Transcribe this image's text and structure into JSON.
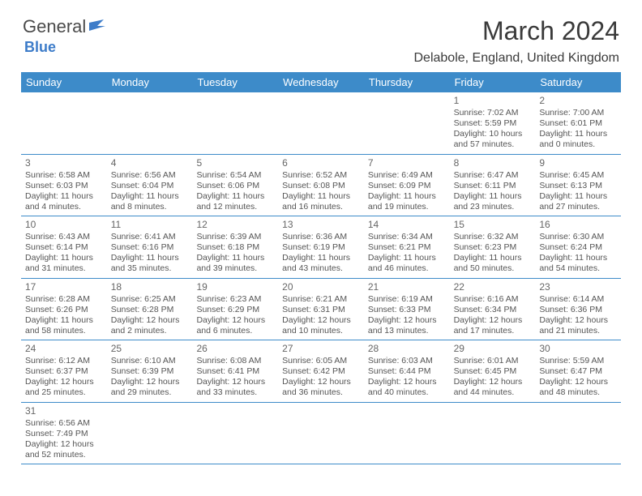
{
  "logo": {
    "part1": "General",
    "part2": "Blue"
  },
  "title": "March 2024",
  "location": "Delabole, England, United Kingdom",
  "header_bg": "#3d8bc9",
  "day_names": [
    "Sunday",
    "Monday",
    "Tuesday",
    "Wednesday",
    "Thursday",
    "Friday",
    "Saturday"
  ],
  "weeks": [
    [
      null,
      null,
      null,
      null,
      null,
      {
        "n": "1",
        "sr": "Sunrise: 7:02 AM",
        "ss": "Sunset: 5:59 PM",
        "d1": "Daylight: 10 hours",
        "d2": "and 57 minutes."
      },
      {
        "n": "2",
        "sr": "Sunrise: 7:00 AM",
        "ss": "Sunset: 6:01 PM",
        "d1": "Daylight: 11 hours",
        "d2": "and 0 minutes."
      }
    ],
    [
      {
        "n": "3",
        "sr": "Sunrise: 6:58 AM",
        "ss": "Sunset: 6:03 PM",
        "d1": "Daylight: 11 hours",
        "d2": "and 4 minutes."
      },
      {
        "n": "4",
        "sr": "Sunrise: 6:56 AM",
        "ss": "Sunset: 6:04 PM",
        "d1": "Daylight: 11 hours",
        "d2": "and 8 minutes."
      },
      {
        "n": "5",
        "sr": "Sunrise: 6:54 AM",
        "ss": "Sunset: 6:06 PM",
        "d1": "Daylight: 11 hours",
        "d2": "and 12 minutes."
      },
      {
        "n": "6",
        "sr": "Sunrise: 6:52 AM",
        "ss": "Sunset: 6:08 PM",
        "d1": "Daylight: 11 hours",
        "d2": "and 16 minutes."
      },
      {
        "n": "7",
        "sr": "Sunrise: 6:49 AM",
        "ss": "Sunset: 6:09 PM",
        "d1": "Daylight: 11 hours",
        "d2": "and 19 minutes."
      },
      {
        "n": "8",
        "sr": "Sunrise: 6:47 AM",
        "ss": "Sunset: 6:11 PM",
        "d1": "Daylight: 11 hours",
        "d2": "and 23 minutes."
      },
      {
        "n": "9",
        "sr": "Sunrise: 6:45 AM",
        "ss": "Sunset: 6:13 PM",
        "d1": "Daylight: 11 hours",
        "d2": "and 27 minutes."
      }
    ],
    [
      {
        "n": "10",
        "sr": "Sunrise: 6:43 AM",
        "ss": "Sunset: 6:14 PM",
        "d1": "Daylight: 11 hours",
        "d2": "and 31 minutes."
      },
      {
        "n": "11",
        "sr": "Sunrise: 6:41 AM",
        "ss": "Sunset: 6:16 PM",
        "d1": "Daylight: 11 hours",
        "d2": "and 35 minutes."
      },
      {
        "n": "12",
        "sr": "Sunrise: 6:39 AM",
        "ss": "Sunset: 6:18 PM",
        "d1": "Daylight: 11 hours",
        "d2": "and 39 minutes."
      },
      {
        "n": "13",
        "sr": "Sunrise: 6:36 AM",
        "ss": "Sunset: 6:19 PM",
        "d1": "Daylight: 11 hours",
        "d2": "and 43 minutes."
      },
      {
        "n": "14",
        "sr": "Sunrise: 6:34 AM",
        "ss": "Sunset: 6:21 PM",
        "d1": "Daylight: 11 hours",
        "d2": "and 46 minutes."
      },
      {
        "n": "15",
        "sr": "Sunrise: 6:32 AM",
        "ss": "Sunset: 6:23 PM",
        "d1": "Daylight: 11 hours",
        "d2": "and 50 minutes."
      },
      {
        "n": "16",
        "sr": "Sunrise: 6:30 AM",
        "ss": "Sunset: 6:24 PM",
        "d1": "Daylight: 11 hours",
        "d2": "and 54 minutes."
      }
    ],
    [
      {
        "n": "17",
        "sr": "Sunrise: 6:28 AM",
        "ss": "Sunset: 6:26 PM",
        "d1": "Daylight: 11 hours",
        "d2": "and 58 minutes."
      },
      {
        "n": "18",
        "sr": "Sunrise: 6:25 AM",
        "ss": "Sunset: 6:28 PM",
        "d1": "Daylight: 12 hours",
        "d2": "and 2 minutes."
      },
      {
        "n": "19",
        "sr": "Sunrise: 6:23 AM",
        "ss": "Sunset: 6:29 PM",
        "d1": "Daylight: 12 hours",
        "d2": "and 6 minutes."
      },
      {
        "n": "20",
        "sr": "Sunrise: 6:21 AM",
        "ss": "Sunset: 6:31 PM",
        "d1": "Daylight: 12 hours",
        "d2": "and 10 minutes."
      },
      {
        "n": "21",
        "sr": "Sunrise: 6:19 AM",
        "ss": "Sunset: 6:33 PM",
        "d1": "Daylight: 12 hours",
        "d2": "and 13 minutes."
      },
      {
        "n": "22",
        "sr": "Sunrise: 6:16 AM",
        "ss": "Sunset: 6:34 PM",
        "d1": "Daylight: 12 hours",
        "d2": "and 17 minutes."
      },
      {
        "n": "23",
        "sr": "Sunrise: 6:14 AM",
        "ss": "Sunset: 6:36 PM",
        "d1": "Daylight: 12 hours",
        "d2": "and 21 minutes."
      }
    ],
    [
      {
        "n": "24",
        "sr": "Sunrise: 6:12 AM",
        "ss": "Sunset: 6:37 PM",
        "d1": "Daylight: 12 hours",
        "d2": "and 25 minutes."
      },
      {
        "n": "25",
        "sr": "Sunrise: 6:10 AM",
        "ss": "Sunset: 6:39 PM",
        "d1": "Daylight: 12 hours",
        "d2": "and 29 minutes."
      },
      {
        "n": "26",
        "sr": "Sunrise: 6:08 AM",
        "ss": "Sunset: 6:41 PM",
        "d1": "Daylight: 12 hours",
        "d2": "and 33 minutes."
      },
      {
        "n": "27",
        "sr": "Sunrise: 6:05 AM",
        "ss": "Sunset: 6:42 PM",
        "d1": "Daylight: 12 hours",
        "d2": "and 36 minutes."
      },
      {
        "n": "28",
        "sr": "Sunrise: 6:03 AM",
        "ss": "Sunset: 6:44 PM",
        "d1": "Daylight: 12 hours",
        "d2": "and 40 minutes."
      },
      {
        "n": "29",
        "sr": "Sunrise: 6:01 AM",
        "ss": "Sunset: 6:45 PM",
        "d1": "Daylight: 12 hours",
        "d2": "and 44 minutes."
      },
      {
        "n": "30",
        "sr": "Sunrise: 5:59 AM",
        "ss": "Sunset: 6:47 PM",
        "d1": "Daylight: 12 hours",
        "d2": "and 48 minutes."
      }
    ],
    [
      {
        "n": "31",
        "sr": "Sunrise: 6:56 AM",
        "ss": "Sunset: 7:49 PM",
        "d1": "Daylight: 12 hours",
        "d2": "and 52 minutes."
      },
      null,
      null,
      null,
      null,
      null,
      null
    ]
  ]
}
